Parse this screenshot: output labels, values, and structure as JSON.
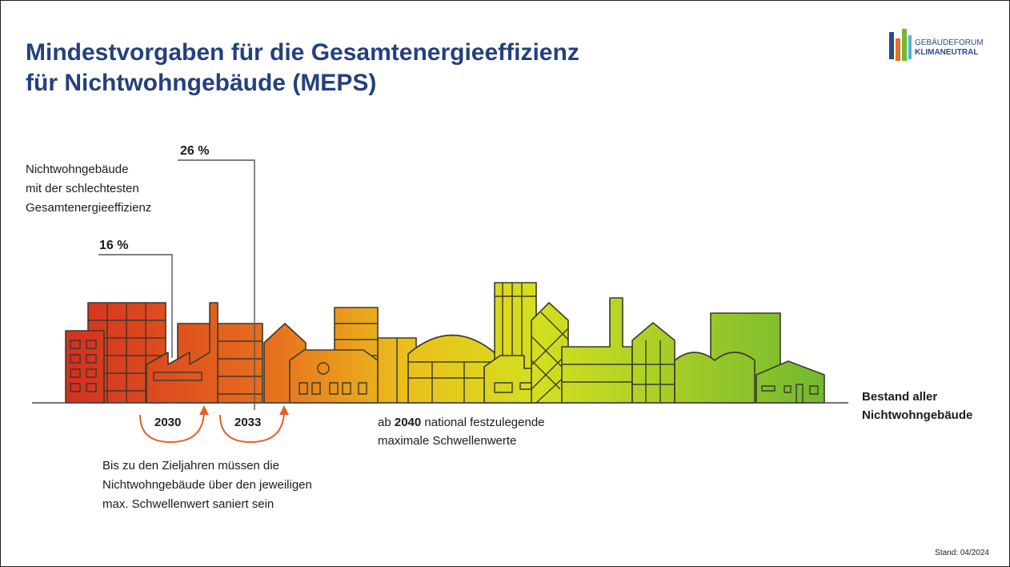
{
  "header": {
    "title": [
      "Mindestvorgaben für die Gesamtenergieeffizienz",
      "für Nichtwohngebäude (MEPS)"
    ],
    "logo": [
      "GEBÄUDEFORUM",
      "KLIMANEUTRAL"
    ]
  },
  "annotations": {
    "share_2033": "26 %",
    "share_2030": "16 %",
    "worst": [
      "Nichtwohngebäude",
      "mit der schlechtesten",
      "Gesamtenergieeffizienz"
    ],
    "years": [
      "2030",
      "2033"
    ],
    "from_2040": [
      "ab ",
      "2040",
      " national festzulegende",
      "maximale Schwellenwerte"
    ],
    "stock": [
      "Bestand aller",
      "Nichtwohngebäude"
    ],
    "deadline": [
      "Bis zu den Zieljahren müssen die",
      "Nichtwohngebäude über den jeweiligen",
      "max. Schwellenwert saniert sein"
    ]
  },
  "footer": {
    "date": "Stand: 04/2024"
  }
}
